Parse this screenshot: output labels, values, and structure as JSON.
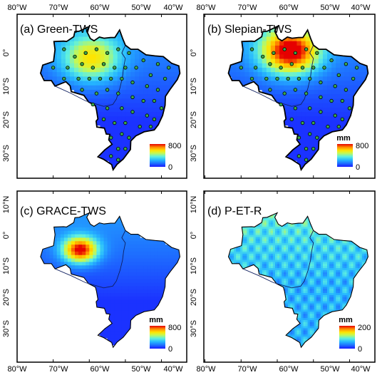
{
  "figure": {
    "top_lon_ticks": [
      "80°W",
      "70°W",
      "60°W",
      "50°W",
      "40°W"
    ],
    "bottom_lon_ticks": [
      "80°W",
      "70°W",
      "60°W",
      "50°W",
      "40°W"
    ],
    "lat_ticks_top_row": [
      "0°",
      "10°S",
      "20°S",
      "30°S"
    ],
    "lat_ticks_bottom_row": [
      "10°N",
      "0°",
      "10°S",
      "20°S",
      "30°S"
    ],
    "colors": {
      "scale": [
        "#1a1aff",
        "#1e6fff",
        "#26b8ff",
        "#5ef0e0",
        "#c8f850",
        "#ffe400",
        "#ff8c00",
        "#e60000"
      ],
      "coastline": "#000000",
      "ocean": "#ffffff",
      "station_fill": "#3aa84a",
      "station_edge": "#000000"
    }
  },
  "panels": [
    {
      "title": "(a) Green-TWS",
      "colorbar": {
        "unit": "",
        "max": "800",
        "min": "0"
      },
      "hotspot": {
        "lon": -60,
        "lat": -3,
        "level": 0.55
      },
      "stations": true
    },
    {
      "title": "(b) Slepian-TWS",
      "colorbar": {
        "unit": "mm",
        "max": "800",
        "min": "0"
      },
      "hotspot": {
        "lon": -57,
        "lat": -1,
        "level": 0.95
      },
      "stations": true
    },
    {
      "title": "(c) GRACE-TWS",
      "colorbar": {
        "unit": "mm",
        "max": "800",
        "min": "0"
      },
      "hotspot": {
        "lon": -63,
        "lat": -5,
        "level": 0.9
      },
      "stations": false
    },
    {
      "title": "(d) P-ET-R",
      "colorbar": {
        "unit": "mm",
        "max": "200",
        "min": "0"
      },
      "hotspot": {
        "lon": -55,
        "lat": -2,
        "level": 0.35
      },
      "stations": false
    }
  ]
}
